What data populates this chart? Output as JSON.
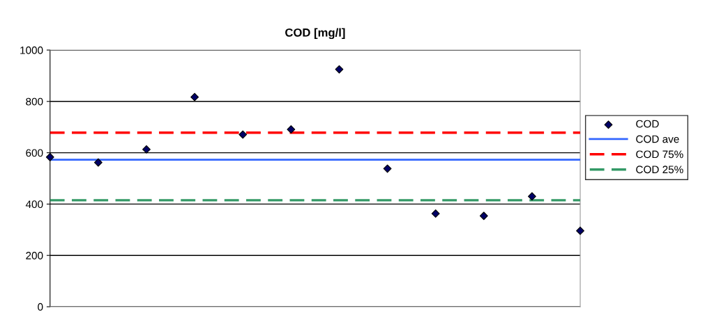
{
  "chart_data": {
    "type": "scatter",
    "title": "COD [mg/l]",
    "categories": [
      null,
      null,
      null,
      null,
      null,
      null,
      null,
      null,
      null,
      null,
      null,
      null
    ],
    "series": [
      {
        "name": "COD",
        "marker": "diamond",
        "color": "#000066",
        "values": [
          583,
          562,
          613,
          817,
          671,
          691,
          925,
          538,
          363,
          354,
          430,
          296
        ]
      },
      {
        "name": "COD ave",
        "type": "line",
        "line_style": "solid",
        "marker": "none",
        "color": "#3366ff",
        "values": [
          573,
          573,
          573,
          573,
          573,
          573,
          573,
          573,
          573,
          573,
          573,
          573
        ]
      },
      {
        "name": "COD 75%",
        "type": "line",
        "line_style": "dashed",
        "marker": "none",
        "color": "#ff0000",
        "values": [
          678,
          678,
          678,
          678,
          678,
          678,
          678,
          678,
          678,
          678,
          678,
          678
        ]
      },
      {
        "name": "COD 25%",
        "type": "line",
        "line_style": "dashed",
        "marker": "none",
        "color": "#339966",
        "values": [
          415,
          415,
          415,
          415,
          415,
          415,
          415,
          415,
          415,
          415,
          415,
          415
        ]
      }
    ],
    "ylim": [
      0,
      1000
    ],
    "yticks": [
      0,
      200,
      400,
      600,
      800,
      1000
    ],
    "grid": "y",
    "legend": "right",
    "tick_labels": "y"
  }
}
